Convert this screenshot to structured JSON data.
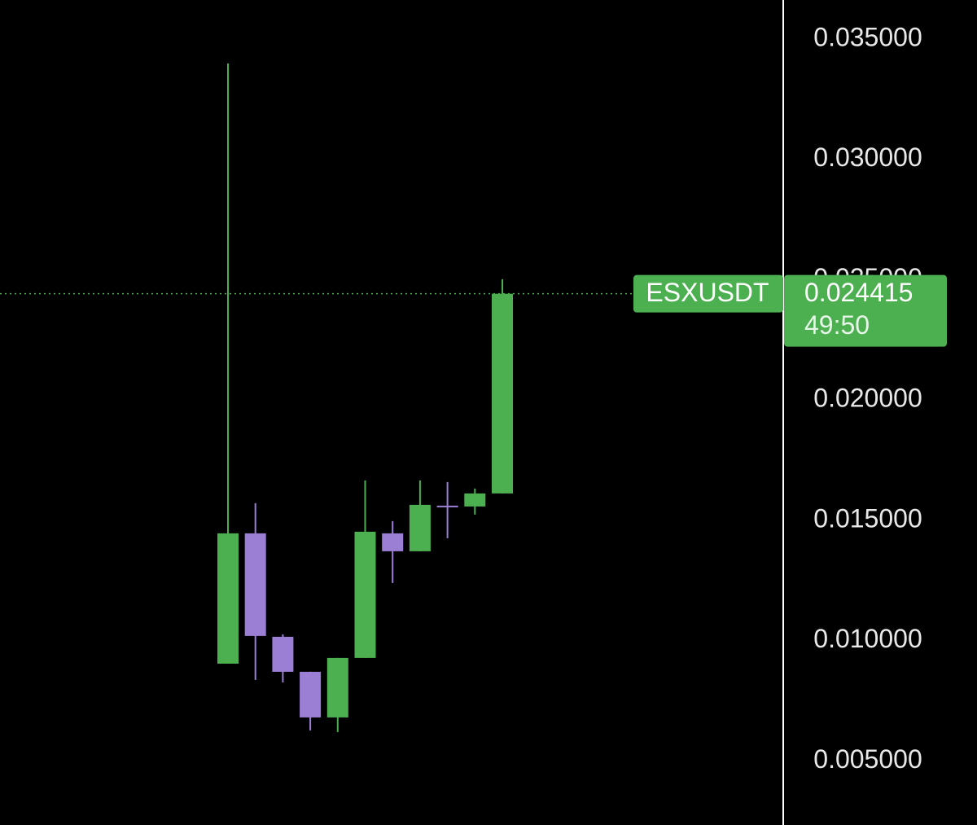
{
  "chart_data": {
    "type": "candlestick",
    "symbol": "ESXUSDT",
    "countdown": "49:50",
    "candles": {
      "open": [
        0.009044,
        0.014459,
        0.010161,
        0.008706,
        0.00681,
        0.009281,
        0.014459,
        0.013714,
        0.015609,
        0.015575,
        0.016117
      ],
      "high": [
        0.033985,
        0.015711,
        0.010262,
        0.008706,
        0.009281,
        0.016658,
        0.014966,
        0.016658,
        0.016591,
        0.01632,
        0.025017
      ],
      "low": [
        0.009044,
        0.008367,
        0.008266,
        0.006269,
        0.006201,
        0.009281,
        0.012394,
        0.013714,
        0.014255,
        0.015237,
        0.016117
      ],
      "close": [
        0.014459,
        0.010195,
        0.008706,
        0.00681,
        0.009281,
        0.014526,
        0.013714,
        0.015643,
        0.015541,
        0.016117,
        0.024415
      ]
    },
    "colors": {
      "up": "#4caf50",
      "down": "#9b7fd4"
    },
    "ylim": [
      0.00234,
      0.03662
    ],
    "yticks": [
      {
        "value": 0.005,
        "label": "0.005000"
      },
      {
        "value": 0.01,
        "label": "0.010000"
      },
      {
        "value": 0.015,
        "label": "0.015000"
      },
      {
        "value": 0.02,
        "label": "0.020000"
      },
      {
        "value": 0.025,
        "label": "0.025000"
      },
      {
        "value": 0.03,
        "label": "0.030000"
      },
      {
        "value": 0.035,
        "label": "0.035000"
      }
    ]
  }
}
